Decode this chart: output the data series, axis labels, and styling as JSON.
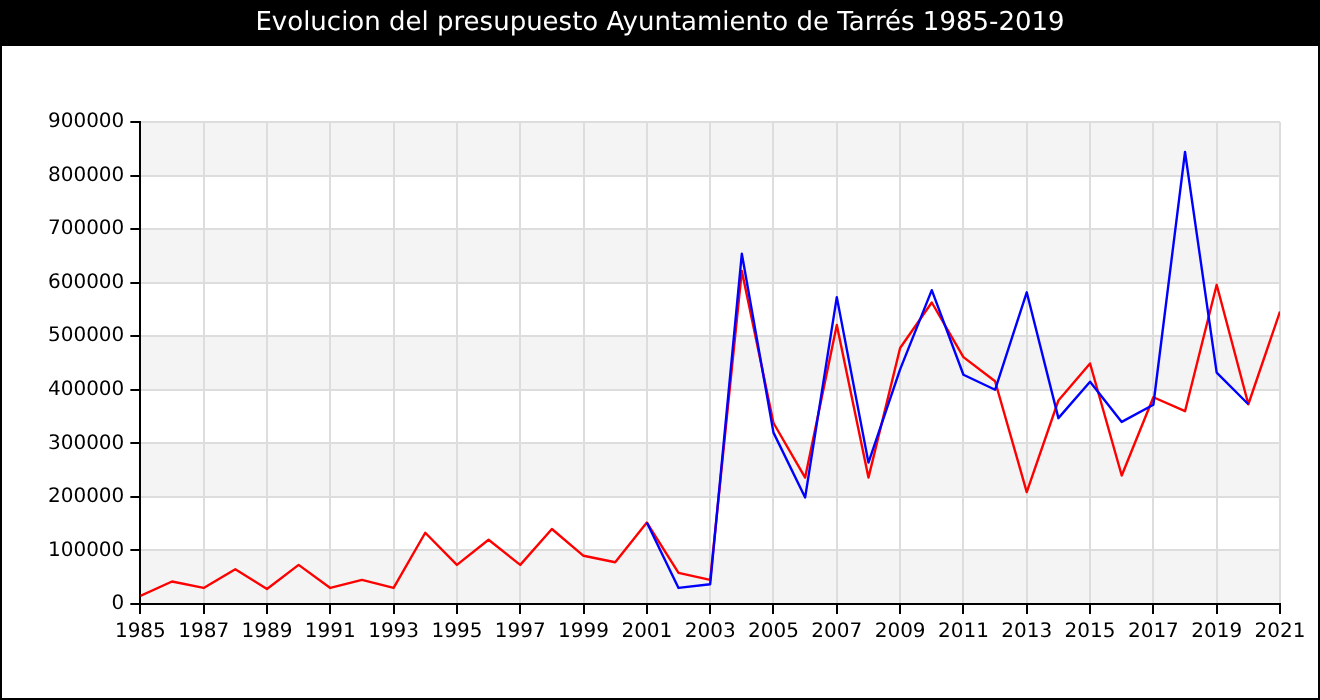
{
  "chart_data": {
    "type": "line",
    "title": "Evolucion del presupuesto Ayuntamiento de Tarrés 1985-2019",
    "x": [
      1985,
      1986,
      1987,
      1988,
      1989,
      1990,
      1991,
      1992,
      1993,
      1994,
      1995,
      1996,
      1997,
      1998,
      1999,
      2000,
      2001,
      2002,
      2003,
      2004,
      2005,
      2006,
      2007,
      2008,
      2009,
      2010,
      2011,
      2012,
      2013,
      2014,
      2015,
      2016,
      2017,
      2018,
      2019,
      2020,
      2021
    ],
    "series": [
      {
        "color": "#0000ff",
        "values": [
          null,
          null,
          null,
          null,
          null,
          null,
          null,
          null,
          null,
          null,
          null,
          null,
          null,
          null,
          null,
          null,
          152000,
          30000,
          37000,
          654000,
          320000,
          199000,
          573000,
          264000,
          438000,
          586000,
          428000,
          400000,
          582000,
          347000,
          415000,
          340000,
          372000,
          844000,
          432000,
          373000,
          null
        ]
      },
      {
        "color": "#ff0000",
        "values": [
          15000,
          42000,
          30000,
          65000,
          28000,
          73000,
          30000,
          45000,
          30000,
          133000,
          73000,
          120000,
          73000,
          140000,
          90000,
          78000,
          152000,
          58000,
          45000,
          622000,
          338000,
          236000,
          521000,
          236000,
          478000,
          563000,
          461000,
          416000,
          209000,
          380000,
          449000,
          240000,
          386000,
          360000,
          596000,
          373000,
          546000
        ]
      }
    ],
    "xlim": [
      1985,
      2021
    ],
    "xticks": [
      1985,
      1987,
      1989,
      1991,
      1993,
      1995,
      1997,
      1999,
      2001,
      2003,
      2005,
      2007,
      2009,
      2011,
      2013,
      2015,
      2017,
      2019,
      2021
    ],
    "ylim": [
      0,
      900000
    ],
    "yticks": [
      0,
      100000,
      200000,
      300000,
      400000,
      500000,
      600000,
      700000,
      800000,
      900000
    ],
    "grid": true,
    "legend": false,
    "marker": "none",
    "line_style": "solid"
  }
}
